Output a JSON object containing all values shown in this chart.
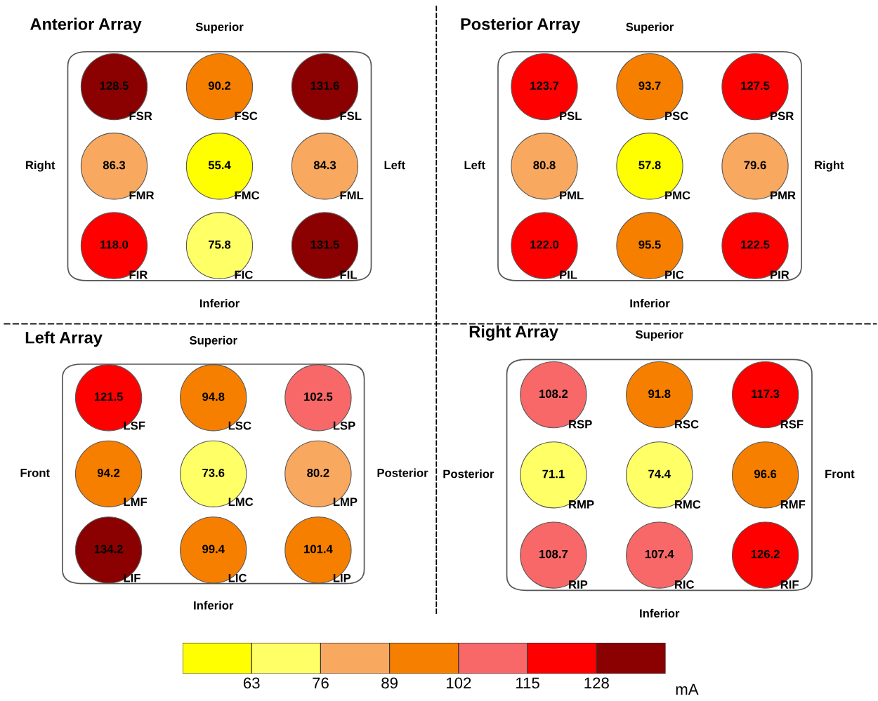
{
  "chart_data": [
    {
      "type": "other",
      "title": "Anterior Array",
      "subtitle": "Superior",
      "xlabel": "Inferior",
      "ylabel": "Right",
      "y2label": "Left",
      "value_labels": [
        "128.5",
        "90.2",
        "131.6",
        "86.3",
        "55.4",
        "84.3",
        "118.0",
        "75.8",
        "131.5"
      ],
      "categories": [
        "FSR",
        "FSC",
        "FSL",
        "FMR",
        "FMC",
        "FML",
        "FIR",
        "FIC",
        "FIL"
      ],
      "values": [
        128.5,
        90.2,
        131.6,
        86.3,
        55.4,
        84.3,
        118.0,
        75.8,
        131.5
      ],
      "colors": [
        "#8b0000",
        "#f77f00",
        "#8b0000",
        "#f9a860",
        "#ffff00",
        "#f9a860",
        "#ff0000",
        "#ffff66",
        "#8b0000"
      ]
    },
    {
      "type": "other",
      "title": "Posterior Array",
      "subtitle": "Superior",
      "xlabel": "Inferior",
      "ylabel": "Left",
      "y2label": "Right",
      "value_labels": [
        "123.7",
        "93.7",
        "127.5",
        "80.8",
        "57.8",
        "79.6",
        "122.0",
        "95.5",
        "122.5"
      ],
      "categories": [
        "PSL",
        "PSC",
        "PSR",
        "PML",
        "PMC",
        "PMR",
        "PIL",
        "PIC",
        "PIR"
      ],
      "values": [
        123.7,
        93.7,
        127.5,
        80.8,
        57.8,
        79.6,
        122.0,
        95.5,
        122.5
      ],
      "colors": [
        "#ff0000",
        "#f77f00",
        "#ff0000",
        "#f9a860",
        "#ffff00",
        "#f9a860",
        "#ff0000",
        "#f77f00",
        "#ff0000"
      ]
    },
    {
      "type": "other",
      "title": "Left Array",
      "subtitle": "Superior",
      "xlabel": "Inferior",
      "ylabel": "Front",
      "y2label": "Posterior",
      "data_labels": true,
      "categories": [
        "LSF",
        "LSC",
        "LSP",
        "LMF",
        "LMC",
        "LMP",
        "LIF",
        "LIC",
        "LIP"
      ],
      "values": [
        121.5,
        94.8,
        102.5,
        94.2,
        73.6,
        80.2,
        134.2,
        99.4,
        101.4
      ],
      "colors": [
        "#ff0000",
        "#f77f00",
        "#f86868",
        "#f77f00",
        "#ffff66",
        "#f9a860",
        "#8b0000",
        "#f77f00",
        "#f77f00"
      ]
    },
    {
      "type": "other",
      "title": "Right Array",
      "subtitle": "Superior",
      "xlabel": "Inferior",
      "ylabel": "Posterior",
      "y2label": "Front",
      "data_labels": true,
      "categories": [
        "RSP",
        "RSC",
        "RSF",
        "RMP",
        "RMC",
        "RMF",
        "RIP",
        "RIC",
        "RIF"
      ],
      "values": [
        108.2,
        91.8,
        117.3,
        71.1,
        74.4,
        96.6,
        108.7,
        107.4,
        126.2
      ],
      "colors": [
        "#f86868",
        "#f77f00",
        "#ff0000",
        "#ffff66",
        "#ffff66",
        "#f77f00",
        "#f86868",
        "#f86868",
        "#ff0000"
      ]
    },
    {
      "type": "bar",
      "orientation": "horizontal",
      "categories": [
        null
      ],
      "xlim": [
        50,
        141
      ],
      "xticks": [
        63,
        76,
        89,
        102,
        115,
        128
      ],
      "xlabel": "mA",
      "series": [
        {
          "color": "#ffff00",
          "base": [
            50
          ],
          "values": [
            13
          ]
        },
        {
          "color": "#ffff66",
          "base": [
            63
          ],
          "values": [
            13
          ]
        },
        {
          "color": "#f9a860",
          "base": [
            76
          ],
          "values": [
            13
          ]
        },
        {
          "color": "#f77f00",
          "base": [
            89
          ],
          "values": [
            13
          ]
        },
        {
          "color": "#f86868",
          "base": [
            102
          ],
          "values": [
            13
          ]
        },
        {
          "color": "#ff0000",
          "base": [
            115
          ],
          "values": [
            13
          ]
        },
        {
          "color": "#8b0000",
          "base": [
            128
          ],
          "values": [
            13
          ]
        }
      ]
    }
  ]
}
